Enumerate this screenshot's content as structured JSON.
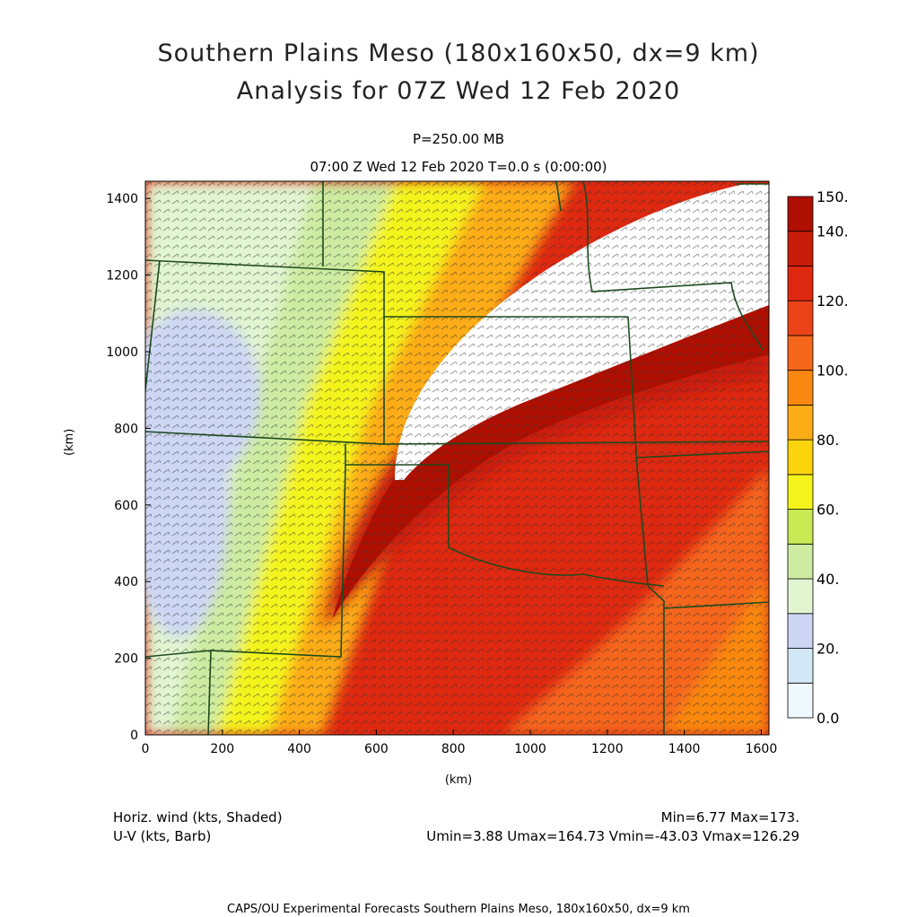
{
  "header": {
    "title_line1": "Southern Plains Meso (180x160x50, dx=9 km)",
    "title_line2": "Analysis for 07Z Wed 12 Feb 2020",
    "level": "P=250.00 MB",
    "time": "07:00 Z Wed 12 Feb 2020    T=0.0 s (0:00:00)"
  },
  "chart_data": {
    "type": "heatmap",
    "xlabel": "(km)",
    "ylabel": "(km)",
    "xlim": [
      0,
      1620
    ],
    "ylim": [
      0,
      1445
    ],
    "x_ticks": [
      0,
      200,
      400,
      600,
      800,
      1000,
      1200,
      1400,
      1600
    ],
    "y_ticks": [
      0,
      200,
      400,
      600,
      800,
      1000,
      1200,
      1400
    ],
    "colorbar": {
      "levels": [
        0,
        10,
        20,
        30,
        40,
        50,
        60,
        70,
        80,
        90,
        100,
        110,
        120,
        130,
        140,
        150
      ],
      "labels": [
        "0.0",
        "20.",
        "40.",
        "60.",
        "80.",
        "100.",
        "120.",
        "140.",
        "150."
      ],
      "label_values": [
        0,
        20,
        40,
        60,
        80,
        100,
        120,
        140,
        150
      ],
      "colors": [
        "#eef8fd",
        "#d2e8f7",
        "#cdd6f4",
        "#e1f5d1",
        "#cdeca1",
        "#c9ea55",
        "#f4f41a",
        "#fcd40c",
        "#fcac14",
        "#fa8810",
        "#f5661a",
        "#ec4418",
        "#de2810",
        "#c81c08",
        "#ae0f00"
      ],
      "overflow_color": "#ffffff"
    },
    "fields": [
      "Horiz. wind (kts, Shaded)",
      "U-V (kts, Barb)"
    ]
  },
  "footer": {
    "left_line1": "Horiz. wind (kts, Shaded)",
    "left_line2": "U-V (kts, Barb)",
    "right_line1": "Min=6.77 Max=173.",
    "right_line2": "Umin=3.88 Umax=164.73 Vmin=-43.03 Vmax=126.29",
    "credit": "CAPS/OU Experimental Forecasts  Southern Plains Meso, 180x160x50, dx=9 km"
  }
}
